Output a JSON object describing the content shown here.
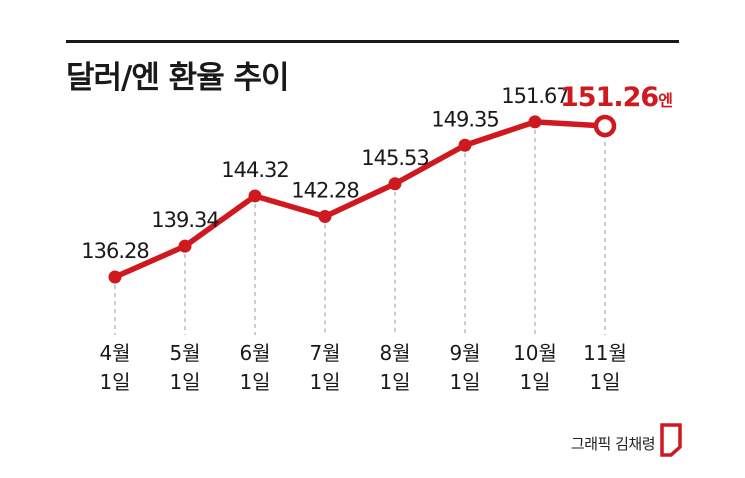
{
  "title": "달러/엔 환율 추이",
  "credit": "그래픽 김채령",
  "colors": {
    "line": "#d0191e",
    "text": "#1a1a1a",
    "grid": "#9a9a9a",
    "highlight": "#d0191e"
  },
  "chart_data": {
    "type": "line",
    "title": "달러/엔 환율 추이",
    "categories_month": [
      "4월",
      "5월",
      "6월",
      "7월",
      "8월",
      "9월",
      "10월",
      "11월"
    ],
    "categories_day": [
      "1일",
      "1일",
      "1일",
      "1일",
      "1일",
      "1일",
      "1일",
      "1일"
    ],
    "values": [
      136.28,
      139.34,
      144.32,
      142.28,
      145.53,
      149.35,
      151.67,
      151.26
    ],
    "value_labels": [
      "136.28",
      "139.34",
      "144.32",
      "142.28",
      "145.53",
      "149.35",
      "151.67",
      "151.26"
    ],
    "highlight_unit": "엔",
    "grid": "vertical-dashed",
    "legend": "none"
  }
}
